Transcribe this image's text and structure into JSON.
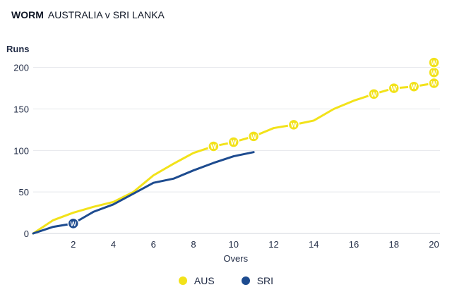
{
  "header": {
    "tag": "WORM",
    "title": "AUSTRALIA v SRI LANKA"
  },
  "colors": {
    "aus": "#f2e21a",
    "sri": "#1d4b8f",
    "grid": "#e5e7eb",
    "wicket_text": "#ffffff"
  },
  "chart_data": {
    "type": "line",
    "xlabel": "Overs",
    "ylabel": "Runs",
    "xlim": [
      0,
      20.3
    ],
    "ylim": [
      0,
      215
    ],
    "x_ticks": [
      2,
      4,
      6,
      8,
      10,
      12,
      14,
      16,
      18,
      20
    ],
    "y_ticks": [
      0,
      50,
      100,
      150,
      200
    ],
    "grid": "horizontal",
    "legend": "bottom-center",
    "wicket_label": "W",
    "series": [
      {
        "name": "AUS",
        "color": "#f2e21a",
        "x": [
          0,
          1,
          2,
          3,
          4,
          5,
          6,
          7,
          8,
          9,
          10,
          11,
          12,
          13,
          14,
          15,
          16,
          17,
          18,
          19,
          20
        ],
        "y": [
          0,
          16,
          25,
          32,
          38,
          50,
          70,
          84,
          97,
          105,
          110,
          117,
          127,
          131,
          136,
          150,
          160,
          168,
          175,
          177,
          181
        ],
        "wickets": [
          {
            "over": 9,
            "runs": 105
          },
          {
            "over": 10,
            "runs": 110
          },
          {
            "over": 11,
            "runs": 117
          },
          {
            "over": 13,
            "runs": 131
          },
          {
            "over": 17,
            "runs": 168
          },
          {
            "over": 18,
            "runs": 175
          },
          {
            "over": 19,
            "runs": 177
          },
          {
            "over": 20,
            "runs": 181
          },
          {
            "over": 20,
            "runs": 194
          },
          {
            "over": 20,
            "runs": 206
          }
        ]
      },
      {
        "name": "SRI",
        "color": "#1d4b8f",
        "x": [
          0,
          1,
          2,
          3,
          4,
          5,
          6,
          7,
          8,
          9,
          10,
          11
        ],
        "y": [
          0,
          8,
          12,
          26,
          35,
          48,
          61,
          66,
          76,
          85,
          93,
          98
        ],
        "wickets": [
          {
            "over": 2,
            "runs": 12
          }
        ]
      }
    ]
  }
}
